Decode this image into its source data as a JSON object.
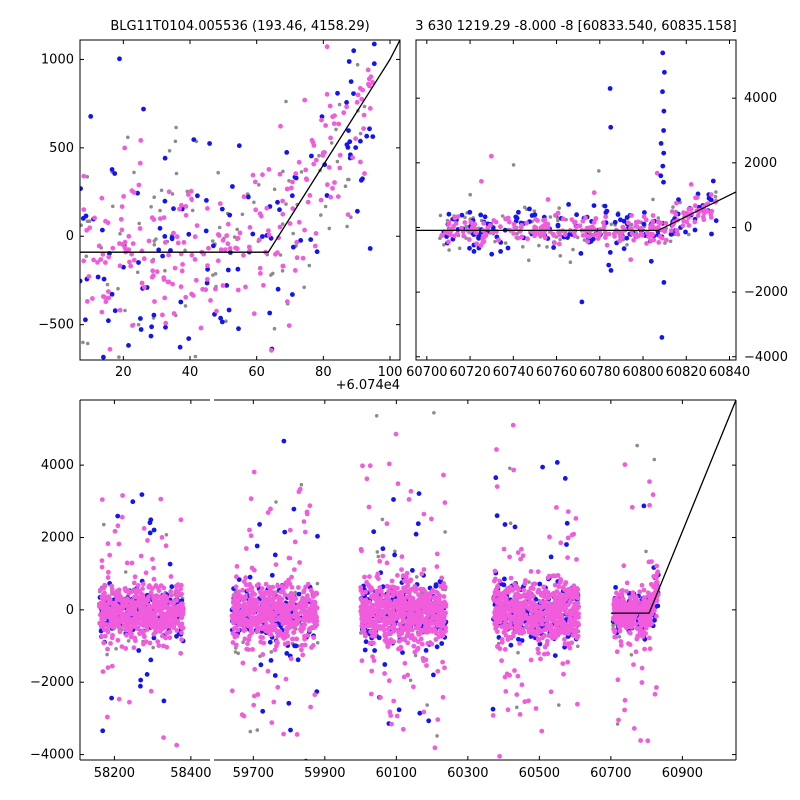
{
  "chart_data": [
    {
      "panel": "top-left",
      "type": "scatter",
      "title": "BLG11T0104.005536 (193.46, 4158.29)",
      "x_offset_label": "+6.074e4",
      "xlim": [
        7,
        103
      ],
      "ylim": [
        -700,
        1110
      ],
      "xticks": [
        "20",
        "40",
        "60",
        "80",
        "100"
      ],
      "yticks": [
        "−500",
        "0",
        "500",
        "1000"
      ],
      "xtick_values": [
        20,
        40,
        60,
        80,
        100
      ],
      "ytick_values": [
        -500,
        0,
        500,
        1000
      ],
      "model_line": {
        "x": [
          7,
          63.5,
          100,
          103
        ],
        "y": [
          -90,
          -90,
          1000,
          1110
        ]
      },
      "series": [
        {
          "color": "#f05cdc",
          "count": 240,
          "x_range": [
            7,
            96
          ],
          "base": -90,
          "break_x": 63.5,
          "slope": 29.8,
          "scatter": 240
        },
        {
          "color": "#1414f0",
          "count": 120,
          "x_range": [
            7,
            96
          ],
          "base": -90,
          "break_x": 63.5,
          "slope": 29.8,
          "scatter": 330
        },
        {
          "color": "#8c8c8c",
          "count": 110,
          "x_range": [
            7,
            96
          ],
          "base": -90,
          "break_x": 63.5,
          "slope": 29.8,
          "scatter": 330
        }
      ]
    },
    {
      "panel": "top-right",
      "type": "scatter",
      "title": "3 630 1219.29 -8.000 -8 [60833.540, 60835.158]",
      "xlim": [
        60695,
        60843
      ],
      "ylim": [
        -4100,
        5800
      ],
      "xticks": [
        "60700",
        "60720",
        "60740",
        "60760",
        "60780",
        "60800",
        "60820",
        "60840"
      ],
      "yticks": [
        "−4000",
        "−2000",
        "0",
        "2000",
        "4000"
      ],
      "xtick_values": [
        60700,
        60720,
        60740,
        60760,
        60780,
        60800,
        60820,
        60840
      ],
      "ytick_values": [
        -4000,
        -2000,
        0,
        2000,
        4000
      ],
      "model_line": {
        "x": [
          60695,
          60807,
          60843
        ],
        "y": [
          -90,
          -90,
          1100
        ]
      },
      "series": [
        {
          "color": "#f05cdc",
          "count": 260,
          "x_range": [
            60706,
            60834
          ],
          "base": -90,
          "break_x": 60807,
          "slope": 33,
          "scatter": 200
        },
        {
          "color": "#1414f0",
          "count": 150,
          "x_range": [
            60706,
            60834
          ],
          "base": -90,
          "break_x": 60807,
          "slope": 33,
          "scatter": 380
        },
        {
          "color": "#8c8c8c",
          "count": 120,
          "x_range": [
            60706,
            60834
          ],
          "base": -90,
          "break_x": 60807,
          "slope": 33,
          "scatter": 380
        }
      ],
      "spikes": [
        {
          "x": 60809,
          "values": [
            5400,
            4800,
            4200,
            3600,
            3000,
            2600,
            2300,
            1900,
            1600,
            1400,
            -1700,
            -3400
          ]
        },
        {
          "x": 60785,
          "values": [
            3100,
            4300
          ]
        }
      ]
    },
    {
      "panel": "bottom",
      "type": "scatter",
      "xticks": [
        "58200",
        "58400",
        "59700",
        "59900",
        "60100",
        "60300",
        "60500",
        "60700",
        "60900"
      ],
      "yticks": [
        "−4000",
        "−2000",
        "0",
        "2000",
        "4000"
      ],
      "ytick_values": [
        -4000,
        -2000,
        0,
        2000,
        4000
      ],
      "ylim": [
        -4150,
        5800
      ],
      "segments": [
        {
          "xlim": [
            58110,
            58450
          ],
          "ticks": [
            58200,
            58400
          ]
        },
        {
          "xlim": [
            59590,
            61050
          ],
          "ticks": [
            59700,
            59900,
            60100,
            60300,
            60500,
            60700,
            60900
          ]
        }
      ],
      "clusters": [
        {
          "x_range": [
            58160,
            58380
          ],
          "scatter": 360,
          "outlier": 1800,
          "n": 520
        },
        {
          "x_range": [
            59640,
            59880
          ],
          "scatter": 380,
          "outlier": 1900,
          "n": 520
        },
        {
          "x_range": [
            60000,
            60240
          ],
          "scatter": 420,
          "outlier": 2200,
          "n": 620
        },
        {
          "x_range": [
            60370,
            60610
          ],
          "scatter": 400,
          "outlier": 2100,
          "n": 560
        },
        {
          "x_range": [
            60706,
            60834
          ],
          "scatter": 300,
          "outlier": 2000,
          "n": 300
        }
      ],
      "model_line": {
        "x": [
          60700,
          60807,
          61050
        ],
        "y": [
          -90,
          -90,
          5800
        ]
      },
      "colors": [
        "#f05cdc",
        "#1414f0",
        "#8c8c8c"
      ]
    }
  ]
}
